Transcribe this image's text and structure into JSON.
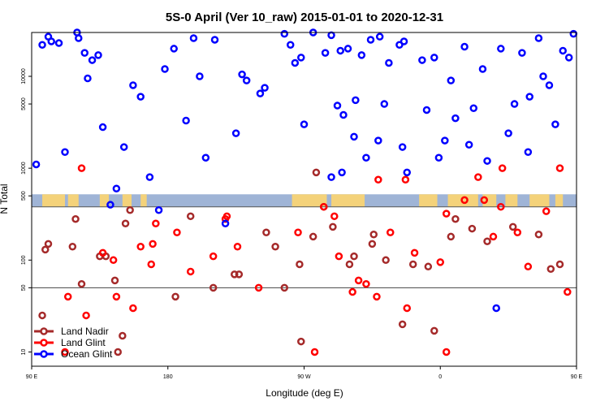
{
  "chart_data": {
    "type": "scatter",
    "title": "5S-0 April (Ver 10_raw)   2015-01-01 to 2020-12-31",
    "xlabel": "Longitude (deg E)",
    "ylabel": "N Total",
    "xscale": "linear",
    "yscale": "log",
    "xlim": [
      90,
      450
    ],
    "ylim": [
      7,
      30000
    ],
    "x_ticks": [
      {
        "value": 90,
        "label": "90 E"
      },
      {
        "value": 180,
        "label": "180"
      },
      {
        "value": 270,
        "label": "90 W"
      },
      {
        "value": 360,
        "label": "0"
      },
      {
        "value": 450,
        "label": "90 E"
      },
      {
        "value": 540,
        "label": "180"
      }
    ],
    "y_ticks": [
      {
        "value": 10,
        "label": "10"
      },
      {
        "value": 50,
        "label": "50"
      },
      {
        "value": 100,
        "label": "100"
      },
      {
        "value": 500,
        "label": "500"
      },
      {
        "value": 1000,
        "label": "1000"
      },
      {
        "value": 5000,
        "label": "5000"
      },
      {
        "value": 10000,
        "label": "10000"
      }
    ],
    "reference_lines": [
      50
    ],
    "map_band": {
      "ymin": 380,
      "ymax": 520,
      "ocean_color": "#9fb4d6",
      "land_color": "#f4d27a"
    },
    "grid": false,
    "legend_position": "bottom-left",
    "series": [
      {
        "name": "Land Nadir",
        "color": "#a52a2a",
        "x": [
          97,
          99,
          101,
          117,
          119,
          123,
          135,
          139,
          145,
          147,
          150,
          152,
          155,
          185,
          195,
          210,
          224,
          227,
          245,
          251,
          257,
          267,
          268,
          276,
          278,
          283,
          289,
          300,
          303,
          315,
          316,
          324,
          335,
          342,
          352,
          356,
          367,
          370,
          381,
          391,
          408,
          425,
          433,
          439
        ],
        "y": [
          25,
          130,
          150,
          140,
          280,
          55,
          110,
          110,
          60,
          10,
          15,
          250,
          350,
          40,
          300,
          50,
          70,
          70,
          200,
          140,
          50,
          90,
          13,
          180,
          900,
          380,
          230,
          90,
          110,
          150,
          190,
          100,
          20,
          90,
          85,
          17,
          180,
          280,
          220,
          160,
          230,
          190,
          80,
          90
        ]
      },
      {
        "name": "Land Glint",
        "color": "#ff0000",
        "x": [
          112,
          114,
          123,
          126,
          137,
          144,
          146,
          157,
          162,
          169,
          170,
          172,
          186,
          195,
          210,
          218,
          219,
          226,
          240,
          266,
          277,
          283,
          290,
          293,
          302,
          306,
          311,
          318,
          319,
          327,
          337,
          338,
          343,
          360,
          364,
          364,
          376,
          385,
          389,
          395,
          400,
          401,
          411,
          418,
          430,
          439,
          444
        ],
        "y": [
          10,
          40,
          1000,
          25,
          120,
          100,
          40,
          30,
          140,
          90,
          150,
          250,
          200,
          75,
          110,
          280,
          300,
          140,
          50,
          200,
          10,
          380,
          300,
          110,
          45,
          60,
          55,
          40,
          750,
          200,
          750,
          30,
          120,
          95,
          10,
          320,
          450,
          800,
          450,
          180,
          380,
          1000,
          200,
          85,
          340,
          1000,
          45
        ]
      },
      {
        "name": "Ocean Glint",
        "color": "#0000ff",
        "x": [
          93,
          97,
          101,
          103,
          108,
          112,
          120,
          121,
          125,
          127,
          130,
          134,
          137,
          142,
          146,
          151,
          157,
          162,
          168,
          174,
          178,
          184,
          192,
          197,
          201,
          205,
          211,
          218,
          225,
          229,
          232,
          241,
          244,
          257,
          261,
          264,
          268,
          270,
          276,
          284,
          288,
          288,
          292,
          294,
          295,
          296,
          299,
          303,
          304,
          308,
          311,
          314,
          319,
          320,
          323,
          326,
          333,
          335,
          336,
          338,
          348,
          351,
          356,
          359,
          363,
          367,
          370,
          376,
          379,
          382,
          388,
          391,
          397,
          400,
          405,
          409,
          414,
          418,
          419,
          425,
          428,
          432,
          436,
          441,
          445,
          448
        ],
        "y": [
          1100,
          22000,
          27000,
          24000,
          23000,
          1500,
          30000,
          26000,
          18000,
          9500,
          15000,
          17000,
          2800,
          400,
          600,
          1700,
          8000,
          6000,
          800,
          350,
          12000,
          20000,
          3300,
          26000,
          10000,
          1300,
          25000,
          250,
          2400,
          10500,
          9000,
          6500,
          7500,
          29000,
          22000,
          14000,
          16000,
          3000,
          30000,
          18000,
          28000,
          800,
          4800,
          19000,
          900,
          3800,
          20000,
          2200,
          5500,
          17000,
          1300,
          25000,
          2000,
          27000,
          5000,
          14000,
          22000,
          1700,
          24000,
          900,
          15000,
          4300,
          16000,
          1300,
          2000,
          9000,
          3500,
          21000,
          1800,
          4500,
          12000,
          1200,
          30,
          20000,
          2400,
          5000,
          18000,
          1500,
          6000,
          26000,
          10000,
          8000,
          3000,
          19000,
          16000,
          29000
        ]
      }
    ]
  }
}
